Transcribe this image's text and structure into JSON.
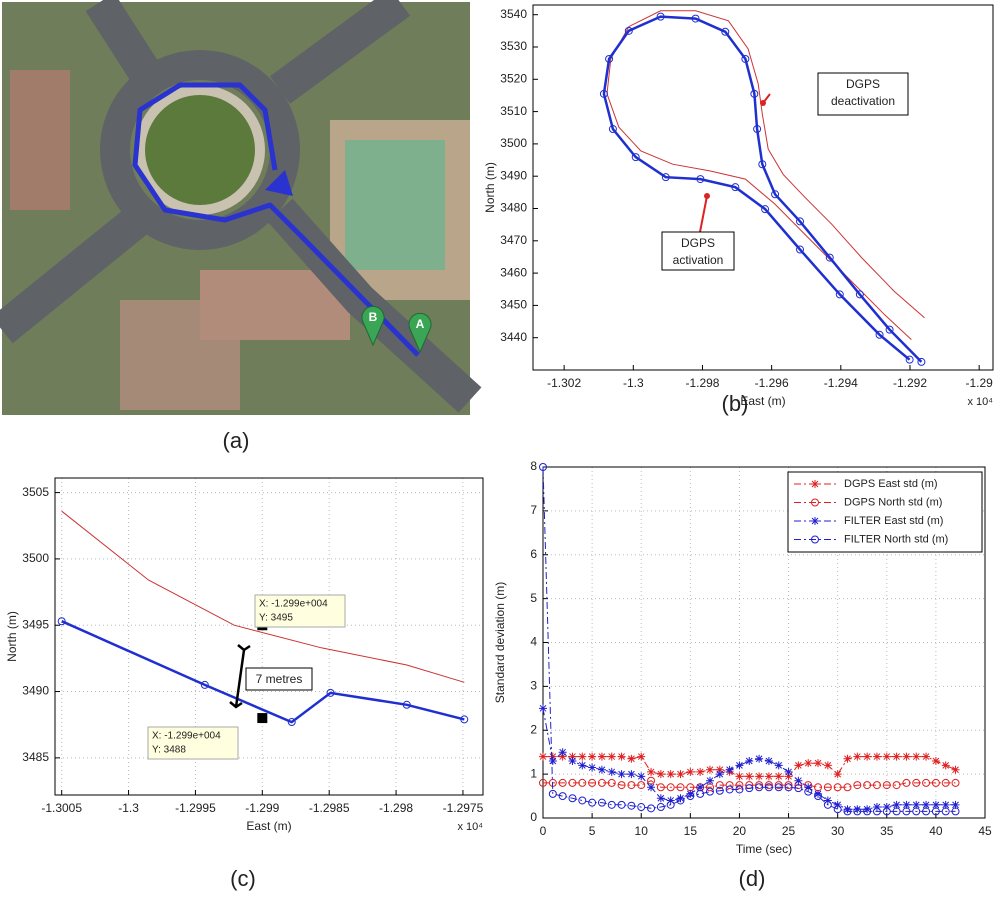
{
  "panel_a": {
    "caption": "(a)",
    "markers": [
      "A",
      "B"
    ]
  },
  "chart_data": [
    {
      "type": "line",
      "caption": "(b)",
      "x_label": "East (m)",
      "y_label": "North (m)",
      "x_multiplier": "x 10⁴",
      "xlim": [
        -1.3029,
        -1.2896
      ],
      "ylim": [
        3430,
        3543
      ],
      "xticks": [
        -1.302,
        -1.3,
        -1.298,
        -1.296,
        -1.294,
        -1.292,
        -1.29
      ],
      "yticks": [
        3440,
        3450,
        3460,
        3470,
        3480,
        3490,
        3500,
        3510,
        3520,
        3530,
        3540
      ],
      "grid": false,
      "annotations": [
        [
          "DGPS",
          "deactivation"
        ],
        [
          "DGPS",
          "activation"
        ]
      ],
      "series": [
        {
          "color": "#cc3333",
          "marker": "none",
          "x": [
            -1.29158,
            -1.29245,
            -1.2934,
            -1.29426,
            -1.29504,
            -1.29567,
            -1.2961,
            -1.29627,
            -1.29639,
            -1.29668,
            -1.29725,
            -1.2982,
            -1.29921,
            -1.30013,
            -1.30065,
            -1.30076,
            -1.30042,
            -1.29978,
            -1.29886,
            -1.29777,
            -1.29676,
            -1.2959,
            -1.29489,
            -1.29374,
            -1.29273,
            -1.29196
          ],
          "values": [
            3446.2,
            3454.3,
            3464.8,
            3475.1,
            3483.5,
            3490.6,
            3498.4,
            3509.3,
            3518.6,
            3529.4,
            3538.1,
            3541.2,
            3541.2,
            3536.3,
            3526.3,
            3515.5,
            3505.2,
            3497.8,
            3493.7,
            3491.6,
            3489.1,
            3481.3,
            3470.4,
            3458,
            3447.1,
            3439.4
          ]
        },
        {
          "color": "#1f2fd0",
          "marker": "o",
          "x": [
            -1.29167,
            -1.29259,
            -1.29345,
            -1.29432,
            -1.29518,
            -1.2959,
            -1.29627,
            -1.29642,
            -1.2965,
            -1.29676,
            -1.29734,
            -1.2982,
            -1.29921,
            -1.30013,
            -1.3007,
            -1.30085,
            -1.30059,
            -1.29993,
            -1.29906,
            -1.29806,
            -1.29705,
            -1.29619,
            -1.29518,
            -1.29403,
            -1.29288,
            -1.29201
          ],
          "values": [
            3432.5,
            3442.5,
            3453.4,
            3464.8,
            3476,
            3484.4,
            3493.7,
            3504.6,
            3515.5,
            3526.3,
            3534.7,
            3538.8,
            3539.4,
            3535,
            3526.3,
            3515.5,
            3504.6,
            3495.9,
            3489.7,
            3489.1,
            3486.6,
            3479.8,
            3467.3,
            3453.4,
            3440.9,
            3433.2
          ]
        }
      ]
    },
    {
      "type": "line",
      "caption": "(c)",
      "x_label": "East (m)",
      "y_label": "North (m)",
      "x_multiplier": "x 10⁴",
      "xlim": [
        -1.30055,
        -1.29735
      ],
      "ylim": [
        3482.2,
        3506.1
      ],
      "xticks": [
        -1.3005,
        -1.3,
        -1.2995,
        -1.299,
        -1.2985,
        -1.298,
        -1.2975
      ],
      "yticks": [
        3485,
        3490,
        3495,
        3500,
        3505
      ],
      "grid": true,
      "datatips": [
        {
          "x": -1.299,
          "y": 3495,
          "x_label": "X: -1.299e+004",
          "y_label": "Y: 3495"
        },
        {
          "x": -1.299,
          "y": 3488,
          "x_label": "X: -1.299e+004",
          "y_label": "Y: 3488"
        }
      ],
      "annotations": [
        "7 metres"
      ],
      "series": [
        {
          "color": "#cc3333",
          "marker": "none",
          "x": [
            -1.3005,
            -1.29985,
            -1.29921,
            -1.29856,
            -1.29792,
            -1.29749
          ],
          "values": [
            3503.6,
            3498.4,
            3495,
            3493.3,
            3492,
            3490.7
          ]
        },
        {
          "color": "#1f2fd0",
          "marker": "o",
          "x": [
            -1.3005,
            -1.29943,
            -1.29878,
            -1.29849,
            -1.29792,
            -1.29749
          ],
          "values": [
            3495.3,
            3490.5,
            3487.7,
            3489.9,
            3489,
            3487.9
          ]
        }
      ]
    },
    {
      "type": "line",
      "caption": "(d)",
      "x_label": "Time (sec)",
      "y_label": "Standard deviation (m)",
      "xlim": [
        0,
        45
      ],
      "ylim": [
        0,
        8
      ],
      "xticks": [
        0,
        5,
        10,
        15,
        20,
        25,
        30,
        35,
        40,
        45
      ],
      "yticks": [
        0,
        1,
        2,
        3,
        4,
        5,
        6,
        7,
        8
      ],
      "grid": true,
      "legend": "upper right",
      "x": [
        0,
        1,
        2,
        3,
        4,
        5,
        6,
        7,
        8,
        9,
        10,
        11,
        12,
        13,
        14,
        15,
        16,
        17,
        18,
        19,
        20,
        21,
        22,
        23,
        24,
        25,
        26,
        27,
        28,
        29,
        30,
        31,
        32,
        33,
        34,
        35,
        36,
        37,
        38,
        39,
        40,
        41,
        42
      ],
      "series": [
        {
          "name": "DGPS East std (m)",
          "color": "#e02020",
          "marker": "*",
          "dash_style": "dashdot",
          "values": [
            1.4,
            1.4,
            1.4,
            1.4,
            1.4,
            1.4,
            1.4,
            1.4,
            1.4,
            1.35,
            1.4,
            1.05,
            1.0,
            1.0,
            1.0,
            1.05,
            1.05,
            1.1,
            1.1,
            1.05,
            0.95,
            0.95,
            0.95,
            0.95,
            0.95,
            0.95,
            1.2,
            1.25,
            1.25,
            1.2,
            1.0,
            1.35,
            1.4,
            1.4,
            1.4,
            1.4,
            1.4,
            1.4,
            1.4,
            1.4,
            1.3,
            1.2,
            1.1
          ]
        },
        {
          "name": "DGPS North std (m)",
          "color": "#e02020",
          "marker": "o",
          "dash_style": "dashdot",
          "values": [
            0.8,
            0.8,
            0.8,
            0.8,
            0.8,
            0.8,
            0.8,
            0.8,
            0.75,
            0.75,
            0.75,
            0.85,
            0.7,
            0.7,
            0.7,
            0.7,
            0.7,
            0.7,
            0.75,
            0.75,
            0.75,
            0.75,
            0.75,
            0.75,
            0.75,
            0.75,
            0.75,
            0.75,
            0.7,
            0.7,
            0.7,
            0.7,
            0.75,
            0.75,
            0.75,
            0.75,
            0.75,
            0.8,
            0.8,
            0.8,
            0.8,
            0.8,
            0.8
          ]
        },
        {
          "name": "FILTER East std (m)",
          "color": "#2020d0",
          "marker": "*",
          "dash_style": "dashdot",
          "values": [
            2.5,
            1.3,
            1.5,
            1.3,
            1.2,
            1.15,
            1.1,
            1.05,
            1.0,
            1.0,
            0.95,
            0.7,
            0.45,
            0.4,
            0.45,
            0.55,
            0.7,
            0.85,
            1.0,
            1.1,
            1.2,
            1.3,
            1.35,
            1.3,
            1.2,
            1.05,
            0.85,
            0.7,
            0.55,
            0.4,
            0.3,
            0.2,
            0.2,
            0.2,
            0.25,
            0.25,
            0.3,
            0.3,
            0.3,
            0.3,
            0.3,
            0.3,
            0.3
          ]
        },
        {
          "name": "FILTER North std (m)",
          "color": "#2020d0",
          "marker": "o",
          "dash_style": "dashdot",
          "values": [
            8.0,
            0.55,
            0.5,
            0.45,
            0.4,
            0.35,
            0.35,
            0.3,
            0.3,
            0.28,
            0.25,
            0.22,
            0.25,
            0.3,
            0.4,
            0.5,
            0.55,
            0.6,
            0.62,
            0.65,
            0.65,
            0.68,
            0.7,
            0.7,
            0.7,
            0.7,
            0.68,
            0.6,
            0.5,
            0.3,
            0.2,
            0.15,
            0.15,
            0.15,
            0.15,
            0.15,
            0.15,
            0.15,
            0.15,
            0.15,
            0.15,
            0.15,
            0.15
          ]
        }
      ]
    }
  ]
}
